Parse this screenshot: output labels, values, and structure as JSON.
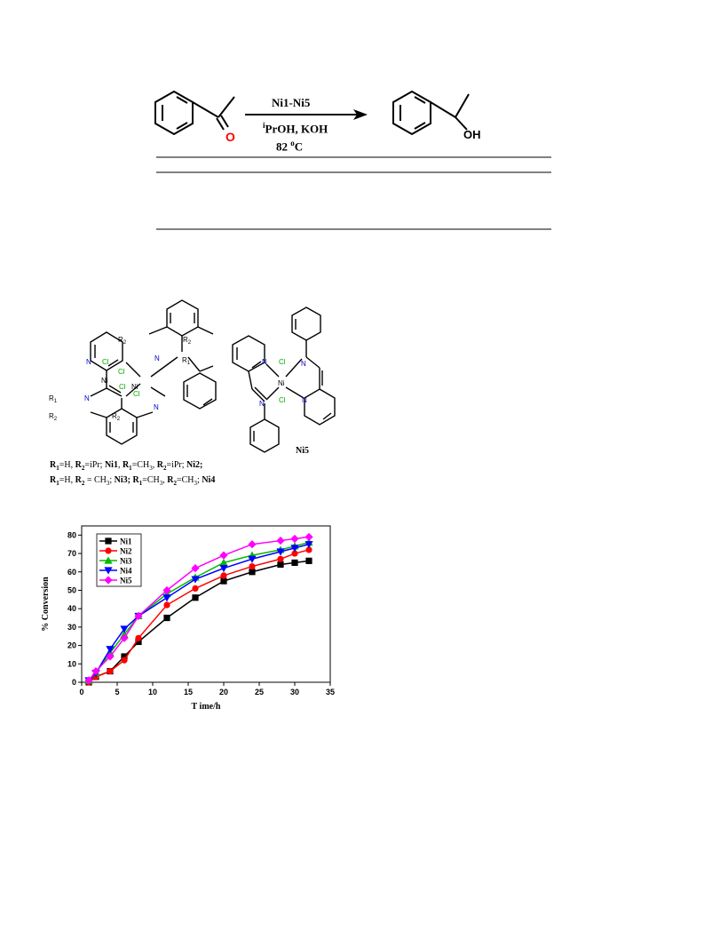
{
  "scheme": {
    "catalyst": "Ni1-Ni5",
    "solvent_sup": "i",
    "solvent": "PrOH, KOH",
    "temp_value": "82 ",
    "temp_sup": "o",
    "temp_unit": "C",
    "reactant_o": "O",
    "product_oh": "OH"
  },
  "complexes": {
    "ni5_label": "Ni5",
    "caption_line1": [
      {
        "t": "R",
        "b": true
      },
      {
        "t": "1",
        "b": true,
        "sub": true
      },
      {
        "t": "=H, ",
        "b": false
      },
      {
        "t": "R",
        "b": true
      },
      {
        "t": "2",
        "b": true,
        "sub": true
      },
      {
        "t": "=iPr; ",
        "b": false
      },
      {
        "t": "Ni1",
        "b": true
      },
      {
        "t": ", ",
        "b": false
      },
      {
        "t": "R",
        "b": true
      },
      {
        "t": "1",
        "b": true,
        "sub": true
      },
      {
        "t": "=CH",
        "b": false
      },
      {
        "t": "3",
        "b": false,
        "sub": true
      },
      {
        "t": ", ",
        "b": false
      },
      {
        "t": "R",
        "b": true
      },
      {
        "t": "2",
        "b": true,
        "sub": true
      },
      {
        "t": "=iPr; ",
        "b": false
      },
      {
        "t": "Ni2;",
        "b": true
      }
    ],
    "caption_line2": [
      {
        "t": "R",
        "b": true
      },
      {
        "t": "1",
        "b": true,
        "sub": true
      },
      {
        "t": "=H, ",
        "b": false
      },
      {
        "t": "R",
        "b": true
      },
      {
        "t": "2",
        "b": true,
        "sub": true
      },
      {
        "t": " = CH",
        "b": false
      },
      {
        "t": "3",
        "b": false,
        "sub": true
      },
      {
        "t": "; ",
        "b": false
      },
      {
        "t": "Ni3; ",
        "b": true
      },
      {
        "t": "R",
        "b": true
      },
      {
        "t": "1",
        "b": true,
        "sub": true
      },
      {
        "t": "=CH",
        "b": false
      },
      {
        "t": "3",
        "b": false,
        "sub": true
      },
      {
        "t": ", ",
        "b": false
      },
      {
        "t": "R",
        "b": true
      },
      {
        "t": "2",
        "b": true,
        "sub": true
      },
      {
        "t": "=CH",
        "b": false
      },
      {
        "t": "3",
        "b": false,
        "sub": true
      },
      {
        "t": "; ",
        "b": false
      },
      {
        "t": "Ni4",
        "b": true
      }
    ]
  },
  "chart_data": {
    "type": "line",
    "xlabel": "T ime/h",
    "ylabel": "% Conversion",
    "xlim": [
      0,
      35
    ],
    "ylim": [
      0,
      85
    ],
    "xticks": [
      0,
      5,
      10,
      15,
      20,
      25,
      30,
      35
    ],
    "yticks": [
      0,
      10,
      20,
      30,
      40,
      50,
      60,
      70,
      80
    ],
    "grid": false,
    "legend_position": "top-left",
    "series": [
      {
        "name": "Ni1",
        "color": "#000000",
        "marker": "square",
        "x": [
          1,
          2,
          4,
          6,
          8,
          12,
          16,
          20,
          24,
          28,
          30,
          32
        ],
        "y": [
          0,
          3,
          6,
          14,
          22,
          35,
          46,
          55,
          60,
          64,
          65,
          66
        ]
      },
      {
        "name": "Ni2",
        "color": "#ff0000",
        "marker": "circle",
        "x": [
          1,
          2,
          4,
          6,
          8,
          12,
          16,
          20,
          24,
          28,
          30,
          32
        ],
        "y": [
          0,
          3,
          6,
          12,
          24,
          42,
          51,
          58,
          63,
          67,
          70,
          72
        ]
      },
      {
        "name": "Ni3",
        "color": "#00bb00",
        "marker": "triangle-up",
        "x": [
          1,
          2,
          4,
          6,
          8,
          12,
          16,
          20,
          24,
          28,
          30,
          32
        ],
        "y": [
          1,
          5,
          16,
          26,
          36,
          48,
          57,
          65,
          69,
          72,
          74,
          76
        ]
      },
      {
        "name": "Ni4",
        "color": "#0000ff",
        "marker": "triangle-down",
        "x": [
          1,
          2,
          4,
          6,
          8,
          12,
          16,
          20,
          24,
          28,
          30,
          32
        ],
        "y": [
          1,
          5,
          18,
          29,
          36,
          46,
          56,
          62,
          67,
          71,
          73,
          75
        ]
      },
      {
        "name": "Ni5",
        "color": "#ff00ff",
        "marker": "diamond",
        "x": [
          1,
          2,
          4,
          6,
          8,
          12,
          16,
          20,
          24,
          28,
          30,
          32
        ],
        "y": [
          1,
          6,
          14,
          24,
          36,
          50,
          62,
          69,
          75,
          77,
          78,
          79
        ]
      }
    ]
  }
}
